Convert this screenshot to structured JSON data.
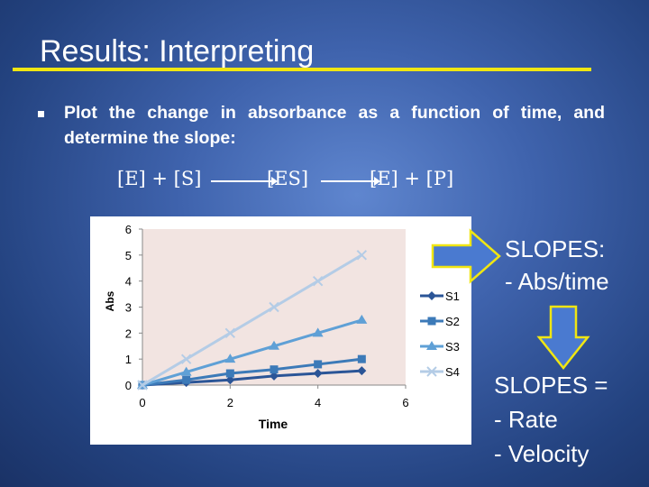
{
  "slide": {
    "title": "Results: Interpreting",
    "bullet": "Plot the change in absorbance as a function of time, and determine the slope:",
    "equation": {
      "left_terms": "[E] + [S]",
      "middle_term": "[ES]",
      "right_terms": "[E] + [P]"
    },
    "slopes_label_line1": "SLOPES:",
    "slopes_label_line2": "- Abs/time",
    "slopes_equals_line1": "SLOPES =",
    "slopes_equals_line2": "-  Rate",
    "slopes_equals_line3": "-  Velocity",
    "colors": {
      "title_rule": "#f0e612",
      "arrow_fill": "#4a7ad0",
      "arrow_border": "#f0e612"
    }
  },
  "chart_data": {
    "type": "line",
    "xlabel": "Time",
    "ylabel": "Abs",
    "xlim": [
      0,
      6
    ],
    "ylim": [
      0,
      6
    ],
    "x_ticks": [
      "0",
      "2",
      "4",
      "6"
    ],
    "y_ticks": [
      "0",
      "1",
      "2",
      "3",
      "4",
      "5",
      "6"
    ],
    "legend_position": "right",
    "grid": false,
    "x": [
      0,
      1,
      2,
      3,
      4,
      5
    ],
    "series": [
      {
        "name": "S1",
        "marker": "diamond",
        "color": "#2b5597",
        "values": [
          0,
          0.1,
          0.2,
          0.35,
          0.45,
          0.55
        ]
      },
      {
        "name": "S2",
        "marker": "square",
        "color": "#3c7ab8",
        "values": [
          0,
          0.2,
          0.45,
          0.6,
          0.8,
          1.0
        ]
      },
      {
        "name": "S3",
        "marker": "triangle",
        "color": "#5fa0d6",
        "values": [
          0,
          0.5,
          1.0,
          1.5,
          2.0,
          2.5
        ]
      },
      {
        "name": "S4",
        "marker": "x",
        "color": "#b4cce6",
        "values": [
          0,
          1,
          2,
          3,
          4,
          5
        ]
      }
    ]
  }
}
